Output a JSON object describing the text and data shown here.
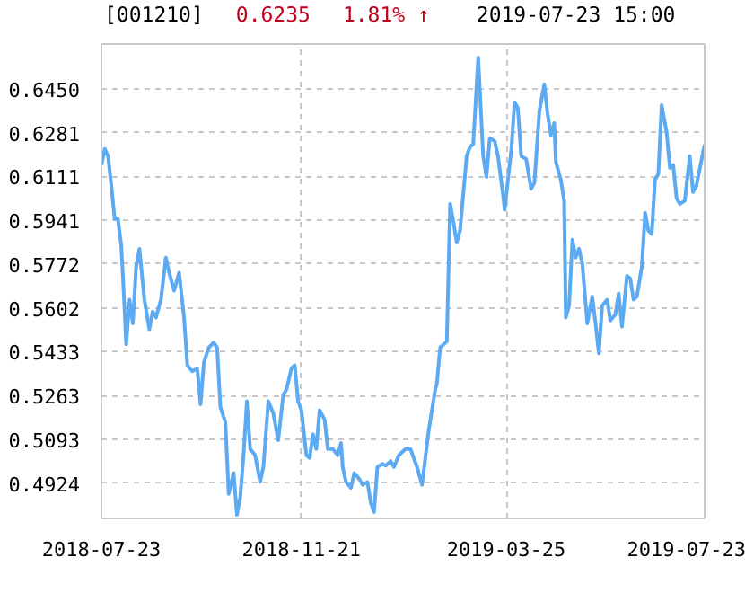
{
  "chart_data": {
    "type": "line",
    "title": "[001210]",
    "annotations": [
      "0.6235",
      "1.81% ↑",
      "2019-07-23 15:00"
    ],
    "x": [
      "2018-07-23",
      "2018-07-25",
      "2018-07-27",
      "2018-07-29",
      "2018-07-31",
      "2018-08-02",
      "2018-08-04",
      "2018-08-05",
      "2018-08-07",
      "2018-08-09",
      "2018-08-11",
      "2018-08-13",
      "2018-08-15",
      "2018-08-18",
      "2018-08-21",
      "2018-08-23",
      "2018-08-25",
      "2018-08-28",
      "2018-08-31",
      "2018-09-02",
      "2018-09-05",
      "2018-09-08",
      "2018-09-11",
      "2018-09-13",
      "2018-09-16",
      "2018-09-19",
      "2018-09-21",
      "2018-09-23",
      "2018-09-26",
      "2018-09-29",
      "2018-10-01",
      "2018-10-03",
      "2018-10-06",
      "2018-10-08",
      "2018-10-11",
      "2018-10-13",
      "2018-10-15",
      "2018-10-17",
      "2018-10-19",
      "2018-10-21",
      "2018-10-24",
      "2018-10-27",
      "2018-10-29",
      "2018-11-01",
      "2018-11-04",
      "2018-11-07",
      "2018-11-10",
      "2018-11-12",
      "2018-11-15",
      "2018-11-17",
      "2018-11-19",
      "2018-11-21",
      "2018-11-24",
      "2018-11-26",
      "2018-11-28",
      "2018-11-30",
      "2018-12-02",
      "2018-12-05",
      "2018-12-07",
      "2018-12-10",
      "2018-12-13",
      "2018-12-15",
      "2018-12-16",
      "2018-12-18",
      "2018-12-21",
      "2018-12-23",
      "2018-12-26",
      "2018-12-28",
      "2018-12-31",
      "2019-01-02",
      "2019-01-04",
      "2019-01-06",
      "2019-01-09",
      "2019-01-11",
      "2019-01-14",
      "2019-01-16",
      "2019-01-19",
      "2019-01-23",
      "2019-01-26",
      "2019-01-30",
      "2019-02-02",
      "2019-02-06",
      "2019-02-10",
      "2019-02-11",
      "2019-02-13",
      "2019-02-17",
      "2019-02-19",
      "2019-02-21",
      "2019-02-23",
      "2019-02-25",
      "2019-03-01",
      "2019-03-03",
      "2019-03-05",
      "2019-03-08",
      "2019-03-11",
      "2019-03-13",
      "2019-03-15",
      "2019-03-18",
      "2019-03-20",
      "2019-03-23",
      "2019-03-24",
      "2019-03-28",
      "2019-03-30",
      "2019-04-01",
      "2019-04-03",
      "2019-04-06",
      "2019-04-09",
      "2019-04-11",
      "2019-04-14",
      "2019-04-17",
      "2019-04-19",
      "2019-04-21",
      "2019-04-23",
      "2019-04-24",
      "2019-04-27",
      "2019-04-29",
      "2019-04-30",
      "2019-05-02",
      "2019-05-04",
      "2019-05-06",
      "2019-05-08",
      "2019-05-10",
      "2019-05-13",
      "2019-05-16",
      "2019-05-18",
      "2019-05-20",
      "2019-05-22",
      "2019-05-25",
      "2019-05-27",
      "2019-05-30",
      "2019-06-01",
      "2019-06-03",
      "2019-06-06",
      "2019-06-08",
      "2019-06-10",
      "2019-06-12",
      "2019-06-15",
      "2019-06-17",
      "2019-06-19",
      "2019-06-21",
      "2019-06-23",
      "2019-06-25",
      "2019-06-27",
      "2019-06-30",
      "2019-07-02",
      "2019-07-04",
      "2019-07-06",
      "2019-07-08",
      "2019-07-11",
      "2019-07-14",
      "2019-07-16",
      "2019-07-18",
      "2019-07-23"
    ],
    "series": [
      {
        "color": "#5caaf2",
        "values": [
          0.6156,
          0.6218,
          0.619,
          0.6075,
          0.5947,
          0.5947,
          0.5843,
          0.5727,
          0.5461,
          0.5634,
          0.5542,
          0.5762,
          0.5831,
          0.5634,
          0.5519,
          0.5588,
          0.5565,
          0.5634,
          0.5797,
          0.5739,
          0.5669,
          0.5739,
          0.5565,
          0.538,
          0.5357,
          0.5368,
          0.5229,
          0.5391,
          0.5449,
          0.5468,
          0.5449,
          0.5218,
          0.516,
          0.4882,
          0.4963,
          0.4801,
          0.487,
          0.5032,
          0.5241,
          0.5056,
          0.5032,
          0.4928,
          0.4986,
          0.5241,
          0.5194,
          0.509,
          0.5264,
          0.5287,
          0.5368,
          0.538,
          0.5241,
          0.5206,
          0.5032,
          0.5021,
          0.5113,
          0.5056,
          0.5206,
          0.5171,
          0.5056,
          0.5056,
          0.5032,
          0.5079,
          0.4986,
          0.4928,
          0.4905,
          0.4963,
          0.494,
          0.4917,
          0.4928,
          0.4847,
          0.4812,
          0.4986,
          0.4998,
          0.4991,
          0.5009,
          0.4986,
          0.5032,
          0.5056,
          0.5056,
          0.4986,
          0.4917,
          0.5125,
          0.5287,
          0.531,
          0.5449,
          0.5472,
          0.6005,
          0.5936,
          0.5855,
          0.5901,
          0.619,
          0.6225,
          0.6237,
          0.6572,
          0.619,
          0.6109,
          0.626,
          0.6248,
          0.619,
          0.604,
          0.5982,
          0.6213,
          0.6399,
          0.6376,
          0.619,
          0.6179,
          0.6063,
          0.6086,
          0.6364,
          0.6468,
          0.6352,
          0.6271,
          0.6318,
          0.6167,
          0.6098,
          0.6017,
          0.5565,
          0.5611,
          0.5866,
          0.5797,
          0.5831,
          0.5773,
          0.5542,
          0.5646,
          0.5542,
          0.5426,
          0.5611,
          0.5634,
          0.5553,
          0.5577,
          0.5658,
          0.553,
          0.5727,
          0.5716,
          0.5634,
          0.5646,
          0.5762,
          0.597,
          0.5901,
          0.5889,
          0.6098,
          0.6121,
          0.6387,
          0.6283,
          0.6144,
          0.6156,
          0.6028,
          0.6005,
          0.6017,
          0.619,
          0.6051,
          0.6075,
          0.6235
        ]
      }
    ],
    "xlim": [
      "2018-07-23",
      "2019-07-23"
    ],
    "xticks": [
      "2018-07-23",
      "2018-11-21",
      "2019-03-25",
      "2019-07-23"
    ],
    "ylim": [
      0.4787,
      0.6624
    ],
    "yticks": [
      {
        "value": 0.645,
        "label": "0.6450"
      },
      0.6281,
      0.6111,
      0.5941,
      0.5772,
      0.5602,
      0.5433,
      0.5263,
      0.5093,
      0.4924
    ],
    "grid": true,
    "line_style": "solid"
  }
}
